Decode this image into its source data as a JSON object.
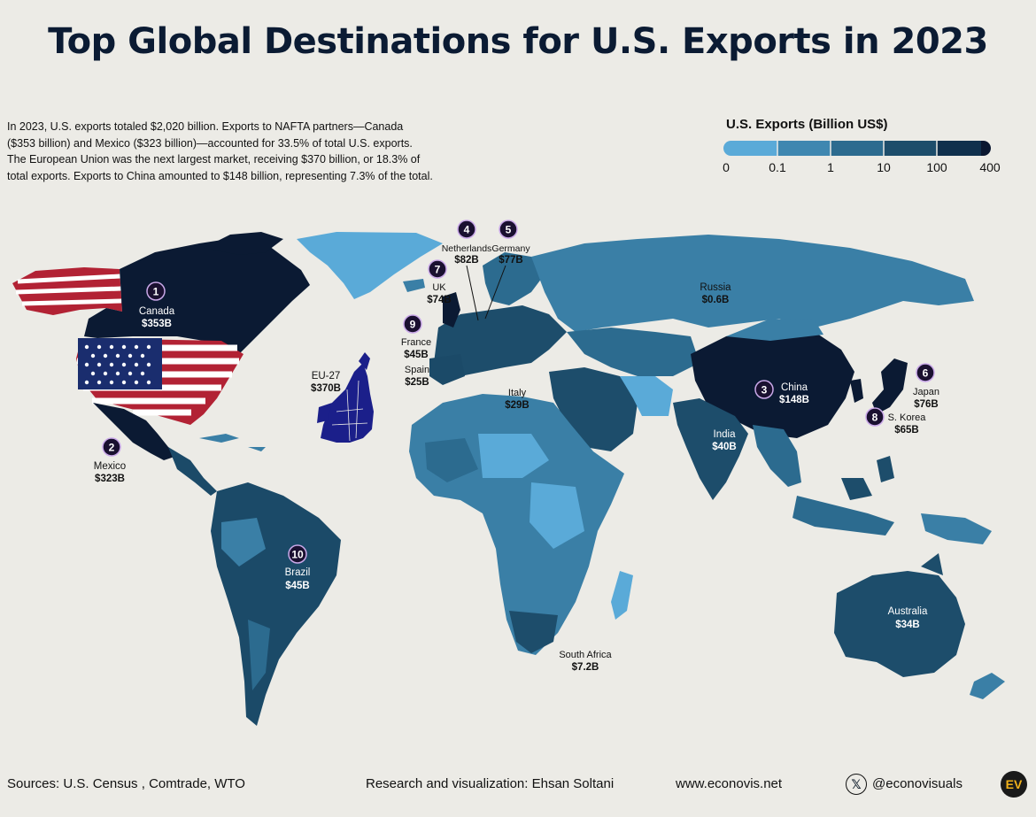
{
  "title": "Top Global Destinations for U.S. Exports in 2023",
  "intro": [
    "In 2023, U.S. exports totaled $2,020 billion. Exports to NAFTA partners—Canada",
    "($353 billion) and Mexico ($323 billion)—accounted for 33.5% of total U.S. exports.",
    "The European Union was the next largest market, receiving $370 billion, or 18.3% of",
    "total exports. Exports to China amounted to $148 billion, representing 7.3% of the total."
  ],
  "legend": {
    "title": "U.S. Exports (Billion US$)",
    "ticks": [
      "0",
      "0.1",
      "1",
      "10",
      "100",
      "400"
    ],
    "colors": [
      "#5aaad8",
      "#3f87b0",
      "#2c6b8f",
      "#1d4d6b",
      "#10304d",
      "#0a1730"
    ]
  },
  "colors": {
    "background": "#ecebe6",
    "ocean": "#ecebe6",
    "light": "#5aaad8",
    "mid": "#3a7fa6",
    "dark": "#1b4a68",
    "darkest": "#0b1a33",
    "eu": "#1b1f8a",
    "badge": "#1a1030",
    "badge_ring": "#c9a8e8"
  },
  "markers": [
    {
      "rank": "1",
      "name": "Canada",
      "value": "$353B"
    },
    {
      "rank": "2",
      "name": "Mexico",
      "value": "$323B"
    },
    {
      "rank": "3",
      "name": "China",
      "value": "$148B"
    },
    {
      "rank": "4",
      "name": "Netherlands",
      "value": "$82B"
    },
    {
      "rank": "5",
      "name": "Germany",
      "value": "$77B"
    },
    {
      "rank": "6",
      "name": "Japan",
      "value": "$76B"
    },
    {
      "rank": "7",
      "name": "UK",
      "value": "$74B"
    },
    {
      "rank": "8",
      "name": "S. Korea",
      "value": "$65B"
    },
    {
      "rank": "9",
      "name": "France",
      "value": "$45B"
    },
    {
      "rank": "10",
      "name": "Brazil",
      "value": "$45B"
    }
  ],
  "labels": [
    {
      "name": "EU-27",
      "value": "$370B"
    },
    {
      "name": "Russia",
      "value": "$0.6B"
    },
    {
      "name": "Spain",
      "value": "$25B"
    },
    {
      "name": "Italy",
      "value": "$29B"
    },
    {
      "name": "India",
      "value": "$40B"
    },
    {
      "name": "Australia",
      "value": "$34B"
    },
    {
      "name": "South Africa",
      "value": "$7.2B"
    }
  ],
  "footer": {
    "sources": "Sources: U.S. Census , Comtrade, WTO",
    "credit": "Research and visualization: Ehsan Soltani",
    "website": "www.econovis.net",
    "social": "@econovisuals",
    "social_icon": "x-logo-icon",
    "logo": "EV"
  }
}
